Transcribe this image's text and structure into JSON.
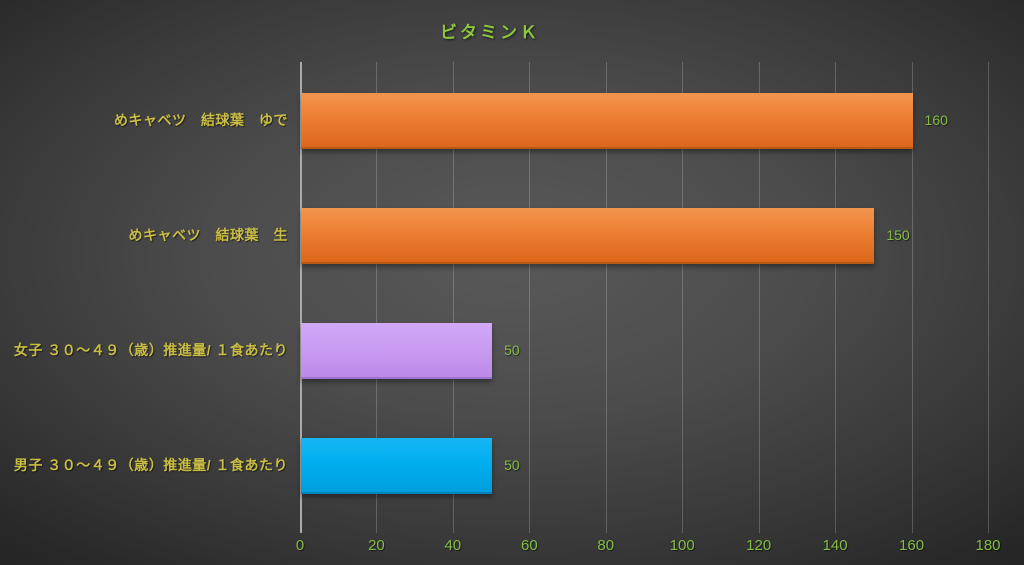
{
  "chart_data": {
    "type": "bar",
    "orientation": "horizontal",
    "title": "ビタミンＫ",
    "categories": [
      "めキャベツ　結球葉　ゆで",
      "めキャベツ　結球葉　生",
      "女子 ３０～４９（歳）推進量/ １食あたり",
      "男子 ３０～４９（歳）推進量/ １食あたり"
    ],
    "values": [
      160,
      150,
      50,
      50
    ],
    "value_labels": [
      "160",
      "150",
      "50",
      "50"
    ],
    "xlabel": "",
    "ylabel": "",
    "xlim": [
      0,
      180
    ],
    "x_ticks": [
      0,
      20,
      40,
      60,
      80,
      100,
      120,
      140,
      160,
      180
    ],
    "grid": true,
    "legend": false,
    "bar_styles": [
      {
        "top": "#F2954E",
        "base": "#ED7D31",
        "bottom": "#DC671C",
        "edge": "#B85A12"
      },
      {
        "top": "#F2954E",
        "base": "#ED7D31",
        "bottom": "#DC671C",
        "edge": "#B85A12"
      },
      {
        "top": "#D0A9F7",
        "base": "#C89BF2",
        "bottom": "#BB8BE8",
        "edge": "#9E70D2"
      },
      {
        "top": "#16B6F2",
        "base": "#00AEEF",
        "bottom": "#009EDC",
        "edge": "#0084BB"
      }
    ]
  },
  "colors": {
    "background_center": "#595959",
    "background_edge": "#242424",
    "title_text": "#8DC63F",
    "category_text": "#C9BD44",
    "tick_text": "#84BD45",
    "value_text": "#84BD45",
    "axis_line": "#ABABAB",
    "gridline": "#707070"
  }
}
